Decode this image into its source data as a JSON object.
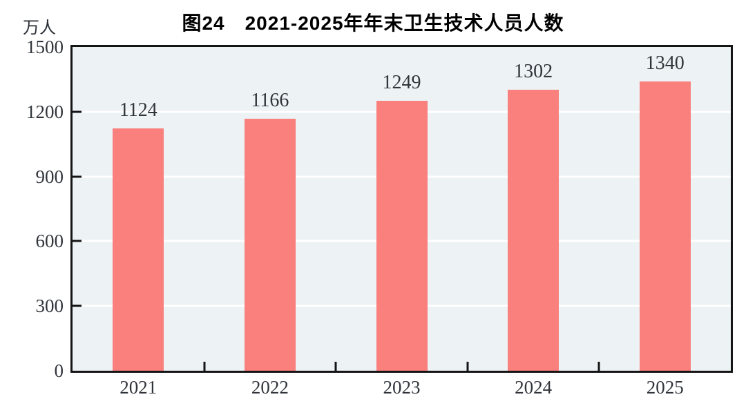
{
  "chart_data": {
    "type": "bar",
    "title": "图24　2021-2025年年末卫生技术人员人数",
    "unit_label": "万人",
    "categories": [
      "2021",
      "2022",
      "2023",
      "2024",
      "2025"
    ],
    "values": [
      1124,
      1166,
      1249,
      1302,
      1340
    ],
    "ylim": [
      0,
      1500
    ],
    "yticks": [
      0,
      300,
      600,
      900,
      1200,
      1500
    ],
    "grid": "horizontal-white",
    "legend": "none",
    "colors": {
      "bar": "#F9807D",
      "plot_background": "#EDF2F5",
      "gridline": "#FFFFFF",
      "axis": "#151515",
      "text": "#31353b",
      "title_text": "#000000",
      "page_background": "#FFFFFF"
    }
  }
}
